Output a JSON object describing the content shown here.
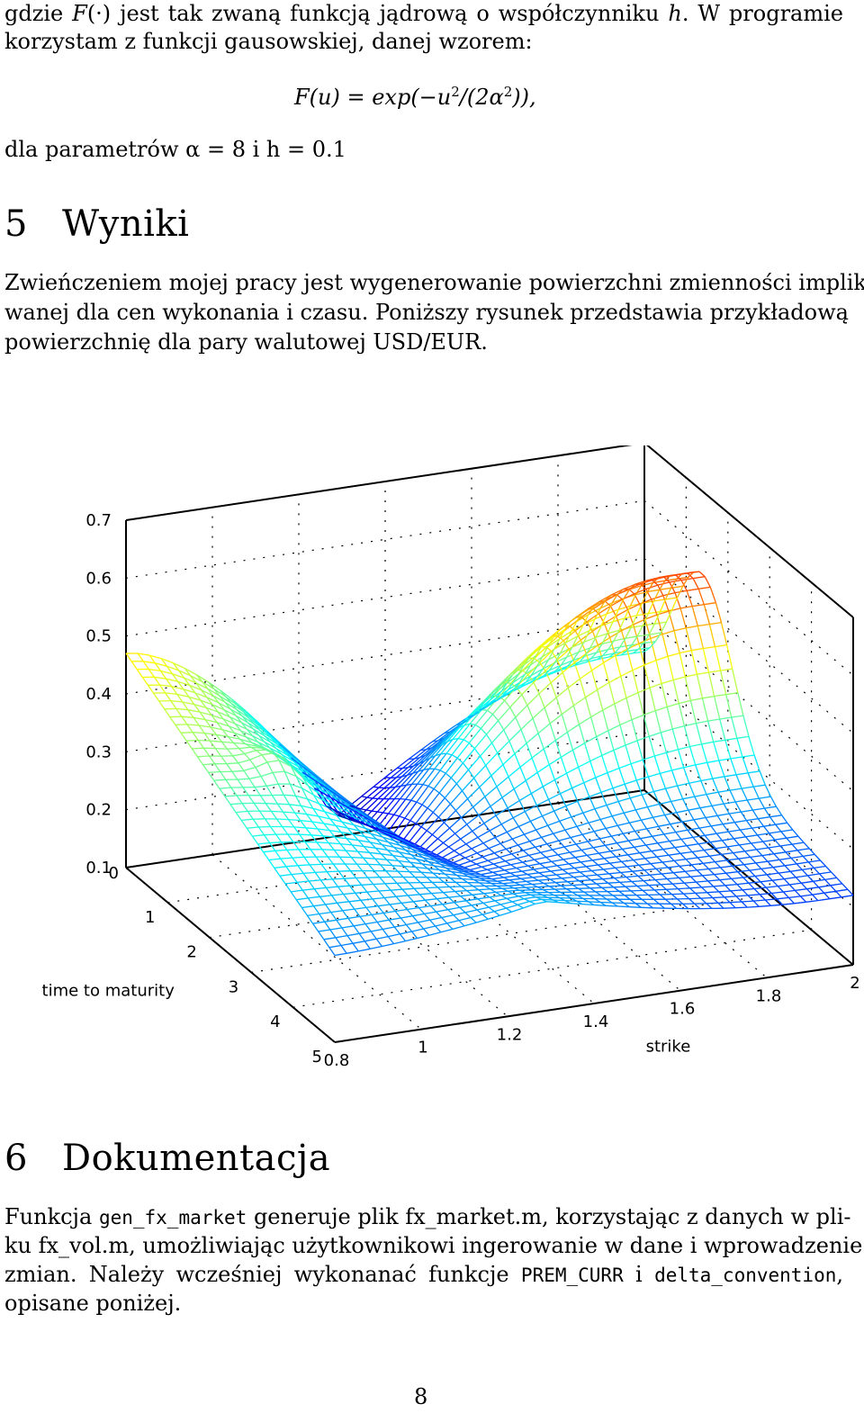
{
  "intro": {
    "line1_pre": "gdzie ",
    "line1_F": "F",
    "line1_mid": "(·) jest tak zwaną funkcją jądrową o współczynniku ",
    "line1_h": "h",
    "line1_post": ". W programie",
    "line2": "korzystam z funkcji gausowskiej, danej wzorem:"
  },
  "formula": {
    "lhs": "F(u) = ",
    "fn": "exp",
    "body": "(−u",
    "exp1": "2",
    "mid": "/(2α",
    "exp2": "2",
    "tail": ")),"
  },
  "params": "dla parametrów α = 8 i h = 0.1",
  "section5": {
    "number": "5",
    "title": "Wyniki",
    "para_lines": [
      "Zwieńczeniem mojej pracy jest wygenerowanie powierzchni zmienności impliko-",
      "wanej dla cen wykonania i czasu. Poniższy rysunek przedstawia przykładową",
      "powierzchnię dla pary walutowej USD/EUR."
    ]
  },
  "chart_data": {
    "type": "surface",
    "zlabel": "",
    "xlabel": "strike",
    "ylabel": "time to maturity",
    "z_ticks": [
      "0.7",
      "0.6",
      "0.5",
      "0.4",
      "0.3",
      "0.2",
      "0.1"
    ],
    "z_origin_tick": "0",
    "y_ticks": [
      "1",
      "2",
      "3",
      "4",
      "5"
    ],
    "x_ticks": [
      "0.8",
      "1",
      "1.2",
      "1.4",
      "1.6",
      "1.8",
      "2"
    ],
    "xlim": [
      0.8,
      2
    ],
    "ylim": [
      0,
      5
    ],
    "zlim": [
      0.1,
      0.7
    ],
    "grid": true,
    "colormap": "jet",
    "surface_description_values": {
      "strike_samples": [
        0.8,
        1.0,
        1.2,
        1.4,
        1.6,
        1.8,
        2.0
      ],
      "maturity_samples": [
        0,
        1,
        2,
        3,
        4,
        5
      ],
      "z_range_observed": [
        0.1,
        0.68
      ]
    }
  },
  "section6": {
    "number": "6",
    "title": "Dokumentacja",
    "l1_a": "Funkcja ",
    "l1_code": "gen_fx_market",
    "l1_b": " generuje plik fx_market.m, korzystając z danych w pli-",
    "l2": "ku fx_vol.m, umożliwiając użytkownikowi ingerowanie w dane i wprowadzenie",
    "l3_a": "zmian. Należy wcześniej wykonanać funkcje ",
    "l3_code1": "PREM_CURR",
    "l3_b": " i ",
    "l3_code2": "delta_convention",
    "l3_c": ",",
    "l4": "opisane poniżej."
  },
  "page_number": "8"
}
